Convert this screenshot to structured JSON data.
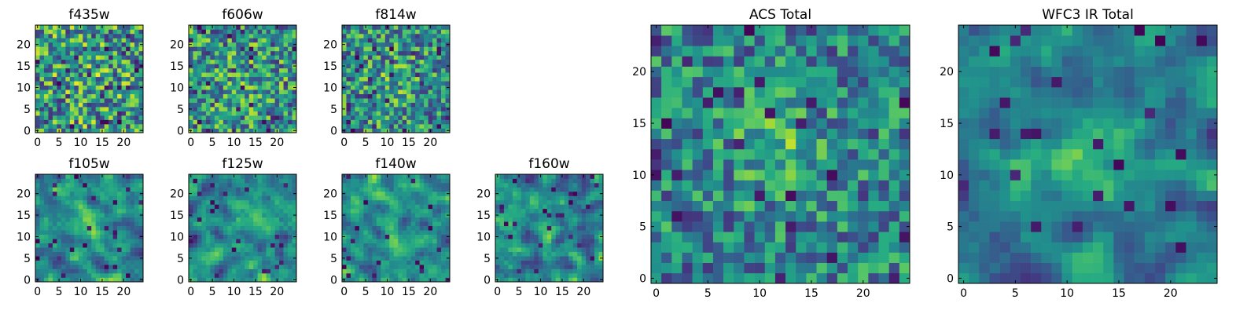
{
  "figure": {
    "colormap": "viridis",
    "colors": {
      "low": "#440154",
      "mid": "#21918c",
      "high": "#fde725",
      "frame": "#000000"
    }
  },
  "chart_data": [
    {
      "type": "heatmap",
      "title": "f435w",
      "grid_size": 25,
      "xticks": [
        "0",
        "5",
        "10",
        "15",
        "20"
      ],
      "yticks": [
        "0",
        "5",
        "10",
        "15",
        "20"
      ],
      "seed": 435,
      "smoothness": 0,
      "blob_strength": 0.05
    },
    {
      "type": "heatmap",
      "title": "f606w",
      "grid_size": 25,
      "xticks": [
        "0",
        "5",
        "10",
        "15",
        "20"
      ],
      "yticks": [
        "0",
        "5",
        "10",
        "15",
        "20"
      ],
      "seed": 606,
      "smoothness": 0,
      "blob_strength": 0.12
    },
    {
      "type": "heatmap",
      "title": "f814w",
      "grid_size": 25,
      "xticks": [
        "0",
        "5",
        "10",
        "15",
        "20"
      ],
      "yticks": [
        "0",
        "5",
        "10",
        "15",
        "20"
      ],
      "seed": 814,
      "smoothness": 0,
      "blob_strength": 0.18
    },
    {
      "type": "heatmap",
      "title": "f105w",
      "grid_size": 25,
      "xticks": [
        "0",
        "5",
        "10",
        "15",
        "20"
      ],
      "yticks": [
        "0",
        "5",
        "10",
        "15",
        "20"
      ],
      "seed": 105,
      "smoothness": 1,
      "blob_strength": 0.18
    },
    {
      "type": "heatmap",
      "title": "f125w",
      "grid_size": 25,
      "xticks": [
        "0",
        "5",
        "10",
        "15",
        "20"
      ],
      "yticks": [
        "0",
        "5",
        "10",
        "15",
        "20"
      ],
      "seed": 125,
      "smoothness": 1,
      "blob_strength": 0.15
    },
    {
      "type": "heatmap",
      "title": "f140w",
      "grid_size": 25,
      "xticks": [
        "0",
        "5",
        "10",
        "15",
        "20"
      ],
      "yticks": [
        "0",
        "5",
        "10",
        "15",
        "20"
      ],
      "seed": 140,
      "smoothness": 1,
      "blob_strength": 0.15
    },
    {
      "type": "heatmap",
      "title": "f160w",
      "grid_size": 25,
      "xticks": [
        "0",
        "5",
        "10",
        "15",
        "20"
      ],
      "yticks": [
        "0",
        "5",
        "10",
        "15",
        "20"
      ],
      "seed": 160,
      "smoothness": 1,
      "blob_strength": 0.18
    },
    {
      "type": "heatmap",
      "title": "ACS Total",
      "grid_size": 25,
      "xticks": [
        "0",
        "5",
        "10",
        "15",
        "20"
      ],
      "yticks": [
        "0",
        "5",
        "10",
        "15",
        "20"
      ],
      "seed": 777,
      "smoothness": 0,
      "blob_strength": 0.3
    },
    {
      "type": "heatmap",
      "title": "WFC3 IR Total",
      "grid_size": 25,
      "xticks": [
        "0",
        "5",
        "10",
        "15",
        "20"
      ],
      "yticks": [
        "0",
        "5",
        "10",
        "15",
        "20"
      ],
      "seed": 888,
      "smoothness": 1,
      "blob_strength": 0.3
    }
  ]
}
